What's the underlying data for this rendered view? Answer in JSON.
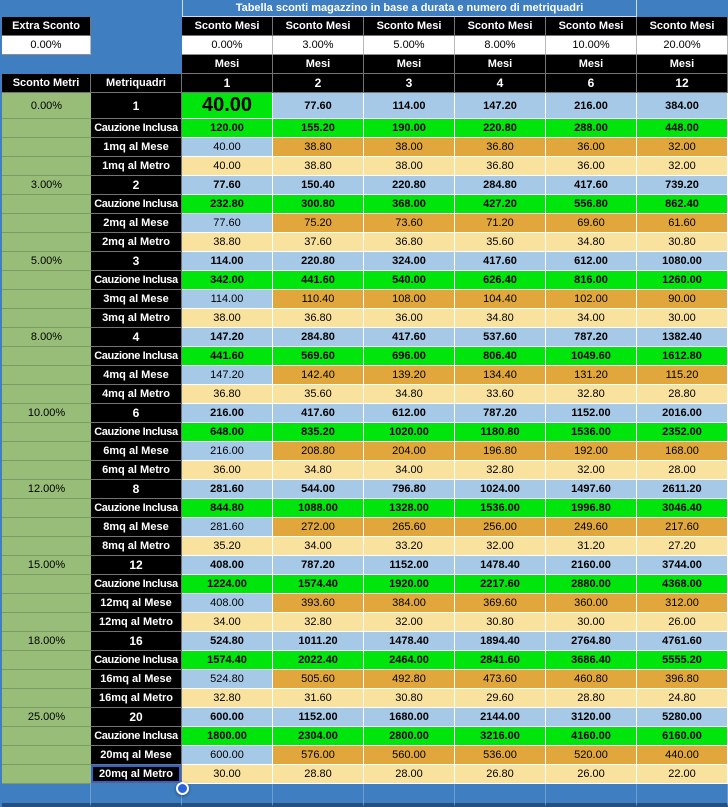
{
  "title": "Tabella sconti magazzino in base a durata e numero di metriquadri",
  "colors": {
    "background_blue": "#3E7EC1",
    "cell_light_blue": "#A7C9E8",
    "cell_bright_green": "#00E60C",
    "cell_orange": "#E1A73C",
    "cell_cream": "#F9E29E",
    "left_column_green": "#97BD78",
    "selection_blue": "#2B63D9"
  },
  "header": {
    "extra_sconto_label": "Extra Sconto",
    "extra_sconto_value": "0.00%",
    "sconto_mesi_label": "Sconto Mesi",
    "mesi_label": "Mesi",
    "sconto_metri_label": "Sconto Metri",
    "metriquadri_label": "Metriquadri",
    "month_discounts": [
      "0.00%",
      "3.00%",
      "5.00%",
      "8.00%",
      "10.00%",
      "20.00%"
    ],
    "months": [
      "1",
      "2",
      "3",
      "4",
      "6",
      "12"
    ]
  },
  "blocks": [
    {
      "metri_discount": "0.00%",
      "size": "1",
      "cauzione_label": "Cauzione Inclusa",
      "mese_label": "1mq al Mese",
      "metro_label": "1mq al Metro",
      "main": [
        "40.00",
        "77.60",
        "114.00",
        "147.20",
        "216.00",
        "384.00"
      ],
      "cauzione": [
        "120.00",
        "155.20",
        "190.00",
        "220.80",
        "288.00",
        "448.00"
      ],
      "mese": [
        "40.00",
        "38.80",
        "38.00",
        "36.80",
        "36.00",
        "32.00"
      ],
      "metro": [
        "40.00",
        "38.80",
        "38.00",
        "36.80",
        "36.00",
        "32.00"
      ]
    },
    {
      "metri_discount": "3.00%",
      "size": "2",
      "cauzione_label": "Cauzione Inclusa",
      "mese_label": "2mq al Mese",
      "metro_label": "2mq al Metro",
      "main": [
        "77.60",
        "150.40",
        "220.80",
        "284.80",
        "417.60",
        "739.20"
      ],
      "cauzione": [
        "232.80",
        "300.80",
        "368.00",
        "427.20",
        "556.80",
        "862.40"
      ],
      "mese": [
        "77.60",
        "75.20",
        "73.60",
        "71.20",
        "69.60",
        "61.60"
      ],
      "metro": [
        "38.80",
        "37.60",
        "36.80",
        "35.60",
        "34.80",
        "30.80"
      ]
    },
    {
      "metri_discount": "5.00%",
      "size": "3",
      "cauzione_label": "Cauzione Inclusa",
      "mese_label": "3mq al Mese",
      "metro_label": "3mq al Metro",
      "main": [
        "114.00",
        "220.80",
        "324.00",
        "417.60",
        "612.00",
        "1080.00"
      ],
      "cauzione": [
        "342.00",
        "441.60",
        "540.00",
        "626.40",
        "816.00",
        "1260.00"
      ],
      "mese": [
        "114.00",
        "110.40",
        "108.00",
        "104.40",
        "102.00",
        "90.00"
      ],
      "metro": [
        "38.00",
        "36.80",
        "36.00",
        "34.80",
        "34.00",
        "30.00"
      ]
    },
    {
      "metri_discount": "8.00%",
      "size": "4",
      "cauzione_label": "Cauzione Inclusa",
      "mese_label": "4mq al Mese",
      "metro_label": "4mq al Metro",
      "main": [
        "147.20",
        "284.80",
        "417.60",
        "537.60",
        "787.20",
        "1382.40"
      ],
      "cauzione": [
        "441.60",
        "569.60",
        "696.00",
        "806.40",
        "1049.60",
        "1612.80"
      ],
      "mese": [
        "147.20",
        "142.40",
        "139.20",
        "134.40",
        "131.20",
        "115.20"
      ],
      "metro": [
        "36.80",
        "35.60",
        "34.80",
        "33.60",
        "32.80",
        "28.80"
      ]
    },
    {
      "metri_discount": "10.00%",
      "size": "6",
      "cauzione_label": "Cauzione Inclusa",
      "mese_label": "6mq al Mese",
      "metro_label": "6mq al Metro",
      "main": [
        "216.00",
        "417.60",
        "612.00",
        "787.20",
        "1152.00",
        "2016.00"
      ],
      "cauzione": [
        "648.00",
        "835.20",
        "1020.00",
        "1180.80",
        "1536.00",
        "2352.00"
      ],
      "mese": [
        "216.00",
        "208.80",
        "204.00",
        "196.80",
        "192.00",
        "168.00"
      ],
      "metro": [
        "36.00",
        "34.80",
        "34.00",
        "32.80",
        "32.00",
        "28.00"
      ]
    },
    {
      "metri_discount": "12.00%",
      "size": "8",
      "cauzione_label": "Cauzione Inclusa",
      "mese_label": "8mq al Mese",
      "metro_label": "8mq al Metro",
      "main": [
        "281.60",
        "544.00",
        "796.80",
        "1024.00",
        "1497.60",
        "2611.20"
      ],
      "cauzione": [
        "844.80",
        "1088.00",
        "1328.00",
        "1536.00",
        "1996.80",
        "3046.40"
      ],
      "mese": [
        "281.60",
        "272.00",
        "265.60",
        "256.00",
        "249.60",
        "217.60"
      ],
      "metro": [
        "35.20",
        "34.00",
        "33.20",
        "32.00",
        "31.20",
        "27.20"
      ]
    },
    {
      "metri_discount": "15.00%",
      "size": "12",
      "cauzione_label": "Cauzione Inclusa",
      "mese_label": "12mq al Mese",
      "metro_label": "12mq al Metro",
      "main": [
        "408.00",
        "787.20",
        "1152.00",
        "1478.40",
        "2160.00",
        "3744.00"
      ],
      "cauzione": [
        "1224.00",
        "1574.40",
        "1920.00",
        "2217.60",
        "2880.00",
        "4368.00"
      ],
      "mese": [
        "408.00",
        "393.60",
        "384.00",
        "369.60",
        "360.00",
        "312.00"
      ],
      "metro": [
        "34.00",
        "32.80",
        "32.00",
        "30.80",
        "30.00",
        "26.00"
      ]
    },
    {
      "metri_discount": "18.00%",
      "size": "16",
      "cauzione_label": "Cauzione Inclusa",
      "mese_label": "16mq al Mese",
      "metro_label": "16mq al Metro",
      "main": [
        "524.80",
        "1011.20",
        "1478.40",
        "1894.40",
        "2764.80",
        "4761.60"
      ],
      "cauzione": [
        "1574.40",
        "2022.40",
        "2464.00",
        "2841.60",
        "3686.40",
        "5555.20"
      ],
      "mese": [
        "524.80",
        "505.60",
        "492.80",
        "473.60",
        "460.80",
        "396.80"
      ],
      "metro": [
        "32.80",
        "31.60",
        "30.80",
        "29.60",
        "28.80",
        "24.80"
      ]
    },
    {
      "metri_discount": "25.00%",
      "size": "20",
      "cauzione_label": "Cauzione Inclusa",
      "mese_label": "20mq al Mese",
      "metro_label": "20mq al Metro",
      "main": [
        "600.00",
        "1152.00",
        "1680.00",
        "2144.00",
        "3120.00",
        "5280.00"
      ],
      "cauzione": [
        "1800.00",
        "2304.00",
        "2800.00",
        "3216.00",
        "4160.00",
        "6160.00"
      ],
      "mese": [
        "600.00",
        "576.00",
        "560.00",
        "536.00",
        "520.00",
        "440.00"
      ],
      "metro": [
        "30.00",
        "28.80",
        "28.00",
        "26.80",
        "26.00",
        "22.00"
      ]
    }
  ],
  "selection": {
    "selected_cell_label": "20mq al Metro"
  }
}
